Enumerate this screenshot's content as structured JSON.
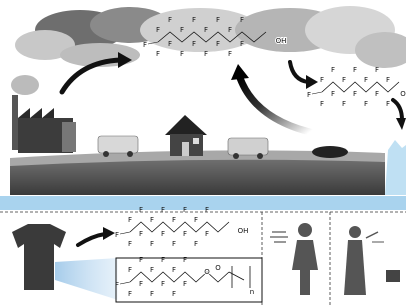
{
  "structures": [
    {
      "atoms": [
        "F",
        "F",
        "F",
        "F",
        "F",
        "F",
        "F",
        "F",
        "F",
        "F",
        "F",
        "F",
        "F",
        "F",
        "F",
        "F",
        "F",
        "OH"
      ]
    },
    {
      "atoms": [
        "F",
        "F",
        "F",
        "F",
        "F",
        "F",
        "F",
        "F",
        "F",
        "F",
        "F",
        "F",
        "F",
        "F",
        "F",
        "O"
      ]
    },
    {
      "atoms": [
        "F",
        "F",
        "F",
        "F",
        "F",
        "F",
        "F",
        "F",
        "F",
        "F",
        "F",
        "F",
        "F",
        "F",
        "F",
        "F",
        "F",
        "OH"
      ]
    },
    {
      "atoms": [
        "F",
        "F",
        "F",
        "F",
        "F",
        "F",
        "F",
        "F",
        "F",
        "F",
        "F",
        "F",
        "F",
        "O",
        "O",
        "n"
      ]
    }
  ]
}
